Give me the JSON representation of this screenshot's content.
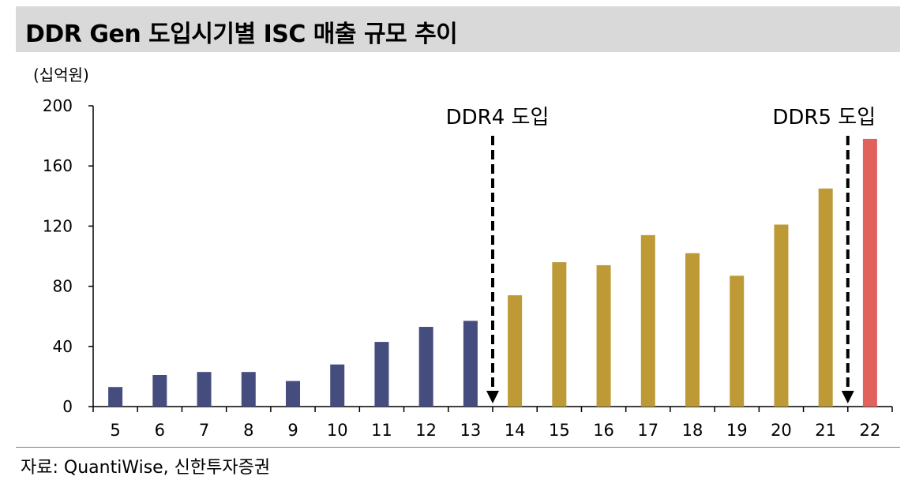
{
  "title": "DDR Gen 도입시기별 ISC 매출 규모 추이",
  "source": "자료: QuantiWise, 신한투자증권",
  "chart_data": {
    "type": "bar",
    "unit_label": "(십억원)",
    "categories": [
      "5",
      "6",
      "7",
      "8",
      "9",
      "10",
      "11",
      "12",
      "13",
      "14",
      "15",
      "16",
      "17",
      "18",
      "19",
      "20",
      "21",
      "22"
    ],
    "values": [
      13,
      21,
      23,
      23,
      17,
      28,
      43,
      53,
      57,
      74,
      96,
      94,
      114,
      102,
      87,
      121,
      145,
      178
    ],
    "bar_colors": [
      "#454d7f",
      "#454d7f",
      "#454d7f",
      "#454d7f",
      "#454d7f",
      "#454d7f",
      "#454d7f",
      "#454d7f",
      "#454d7f",
      "#bd9a36",
      "#bd9a36",
      "#bd9a36",
      "#bd9a36",
      "#bd9a36",
      "#bd9a36",
      "#bd9a36",
      "#bd9a36",
      "#e1625d"
    ],
    "ylim": [
      0,
      200
    ],
    "yticks": [
      0,
      40,
      80,
      120,
      160,
      200
    ],
    "annotations": [
      {
        "label": "DDR4 도입",
        "between": [
          "13",
          "14"
        ]
      },
      {
        "label": "DDR5 도입",
        "between": [
          "21",
          "22"
        ]
      }
    ],
    "grid": false
  }
}
